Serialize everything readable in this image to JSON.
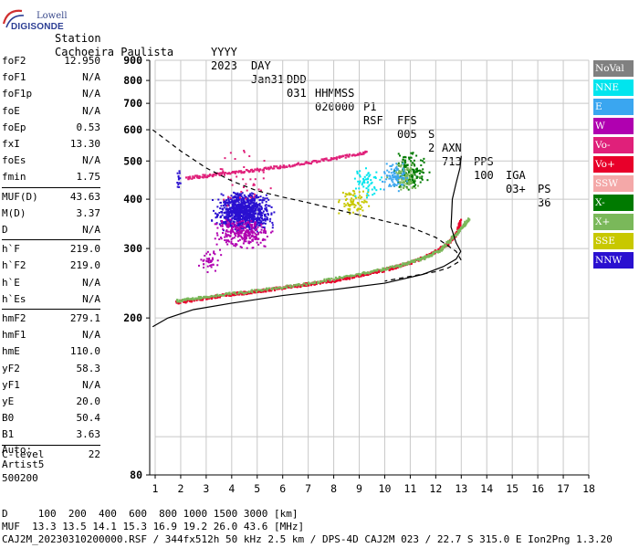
{
  "logo": {
    "line1": "Lowell",
    "line2": "DIGISONDE"
  },
  "header": {
    "labels": [
      "Station",
      "YYYY",
      "DAY",
      "DDD",
      "HHMMSS",
      "P1",
      "FFS",
      "S",
      "AXN",
      "PPS",
      "IGA",
      "PS"
    ],
    "values": [
      "Cachoeira Paulista",
      "2023",
      "Jan31",
      "031",
      "020000",
      "RSF",
      "005",
      "2",
      "713",
      "100",
      "03+",
      "36"
    ]
  },
  "params": [
    {
      "key": "foF2",
      "value": "12.950"
    },
    {
      "key": "foF1",
      "value": "N/A"
    },
    {
      "key": "foF1p",
      "value": "N/A"
    },
    {
      "key": "foE",
      "value": "N/A"
    },
    {
      "key": "foEp",
      "value": "0.53"
    },
    {
      "key": "fxI",
      "value": "13.30"
    },
    {
      "key": "foEs",
      "value": "N/A"
    },
    {
      "key": "fmin",
      "value": "1.75"
    },
    {
      "key": "MUF(D)",
      "value": "43.63"
    },
    {
      "key": "M(D)",
      "value": "3.37"
    },
    {
      "key": "D",
      "value": "N/A"
    },
    {
      "key": "h`F",
      "value": "219.0"
    },
    {
      "key": "h`F2",
      "value": "219.0"
    },
    {
      "key": "h`E",
      "value": "N/A"
    },
    {
      "key": "h`Es",
      "value": "N/A"
    },
    {
      "key": "hmF2",
      "value": "279.1"
    },
    {
      "key": "hmF1",
      "value": "N/A"
    },
    {
      "key": "hmE",
      "value": "110.0"
    },
    {
      "key": "yF2",
      "value": "58.3"
    },
    {
      "key": "yF1",
      "value": "N/A"
    },
    {
      "key": "yE",
      "value": "20.0"
    },
    {
      "key": "B0",
      "value": "50.4"
    },
    {
      "key": "B1",
      "value": "3.63"
    },
    {
      "key": "C-level",
      "value": "22"
    }
  ],
  "auto": {
    "line1": "Auto:",
    "line2": "Artist5",
    "line3": "500200"
  },
  "legend": [
    {
      "label": "NoVal",
      "color": "#808080"
    },
    {
      "label": "NNE",
      "color": "#00e5ee"
    },
    {
      "label": "E",
      "color": "#3aa6f0"
    },
    {
      "label": "W",
      "color": "#b000b0"
    },
    {
      "label": "Vo-",
      "color": "#e0207a"
    },
    {
      "label": "Vo+",
      "color": "#e8002a"
    },
    {
      "label": "SSW",
      "color": "#f4a8a8"
    },
    {
      "label": "X-",
      "color": "#007a00"
    },
    {
      "label": "X+",
      "color": "#7ab85a"
    },
    {
      "label": "SSE",
      "color": "#c8c800"
    },
    {
      "label": "NNW",
      "color": "#2a10d0"
    }
  ],
  "footer": {
    "line1": "D     100  200  400  600  800 1000 1500 3000 [km]",
    "line2": "MUF  13.3 13.5 14.1 15.3 16.9 19.2 26.0 43.6 [MHz]",
    "line3": "CAJ2M_20230310200000.RSF / 344fx512h 50 kHz 2.5 km / DPS-4D CAJ2M 023 / 22.7 S 315.0 E Ion2Png 1.3.20"
  },
  "chart_data": {
    "type": "scatter",
    "x": {
      "min": 1,
      "max": 18,
      "ticks": [
        1,
        2,
        3,
        4,
        5,
        6,
        7,
        8,
        9,
        10,
        11,
        12,
        13,
        14,
        15,
        16,
        17,
        18
      ]
    },
    "y": {
      "min": 80,
      "max": 900,
      "ticks": [
        80,
        200,
        300,
        400,
        500,
        600,
        700,
        800,
        900
      ],
      "scale": "log"
    },
    "grid": true,
    "profile": {
      "style": "solid",
      "x": [
        0.9,
        1.5,
        2.5,
        4,
        6,
        8,
        10,
        11.5,
        12.3,
        12.8,
        12.98,
        12.8,
        12.6,
        12.65,
        12.8,
        12.95,
        13.0
      ],
      "y": [
        190,
        200,
        210,
        218,
        228,
        236,
        245,
        258,
        270,
        282,
        295,
        310,
        340,
        400,
        440,
        480,
        515
      ]
    },
    "model": {
      "style": "dashed",
      "x": [
        0.9,
        2,
        3,
        4,
        5,
        6,
        7,
        8,
        9,
        10,
        11,
        12,
        12.8,
        13.0,
        12.5,
        12,
        11,
        10
      ],
      "y": [
        600,
        530,
        480,
        445,
        420,
        405,
        392,
        378,
        365,
        352,
        340,
        320,
        295,
        280,
        268,
        262,
        255,
        248
      ]
    },
    "traces": [
      {
        "name": "O-trace",
        "color": "#e8002a",
        "x": [
          1.8,
          3,
          4,
          5,
          6,
          7,
          8,
          9,
          10,
          11,
          11.8,
          12.4,
          12.8,
          12.95
        ],
        "y": [
          220,
          226,
          231,
          235,
          240,
          245,
          250,
          258,
          266,
          278,
          292,
          308,
          330,
          355
        ]
      },
      {
        "name": "X-trace",
        "color": "#7ab85a",
        "x": [
          1.8,
          3,
          5,
          7,
          9,
          10.5,
          11.5,
          12.2,
          12.8,
          13.3
        ],
        "y": [
          222,
          228,
          236,
          246,
          260,
          272,
          285,
          300,
          330,
          360
        ]
      },
      {
        "name": "F2-echo",
        "color": "#e0207a",
        "x": [
          2.2,
          3.5,
          5,
          6.5,
          8,
          9.3
        ],
        "y": [
          455,
          465,
          478,
          492,
          510,
          530
        ]
      }
    ],
    "clusters": [
      {
        "color": "#2a10d0",
        "xr": [
          3,
          5.8
        ],
        "yr": [
          330,
          420
        ],
        "n": 900
      },
      {
        "color": "#b000b0",
        "xr": [
          3,
          5.8
        ],
        "yr": [
          300,
          360
        ],
        "n": 260
      },
      {
        "color": "#c8c800",
        "xr": [
          8,
          9.5
        ],
        "yr": [
          360,
          430
        ],
        "n": 80
      },
      {
        "color": "#00e5ee",
        "xr": [
          8.5,
          10
        ],
        "yr": [
          400,
          490
        ],
        "n": 60
      },
      {
        "color": "#007a00",
        "xr": [
          10.2,
          11.8
        ],
        "yr": [
          420,
          530
        ],
        "n": 160
      },
      {
        "color": "#7ab85a",
        "xr": [
          10,
          11.5
        ],
        "yr": [
          410,
          500
        ],
        "n": 80
      },
      {
        "color": "#3aa6f0",
        "xr": [
          9.7,
          11
        ],
        "yr": [
          420,
          500
        ],
        "n": 80
      },
      {
        "color": "#b000b0",
        "xr": [
          2.4,
          3.8
        ],
        "yr": [
          260,
          300
        ],
        "n": 40
      },
      {
        "color": "#e0207a",
        "xr": [
          3,
          6
        ],
        "yr": [
          360,
          560
        ],
        "n": 40
      },
      {
        "color": "#2a10d0",
        "xr": [
          1.8,
          2
        ],
        "yr": [
          420,
          480
        ],
        "n": 14
      }
    ]
  }
}
